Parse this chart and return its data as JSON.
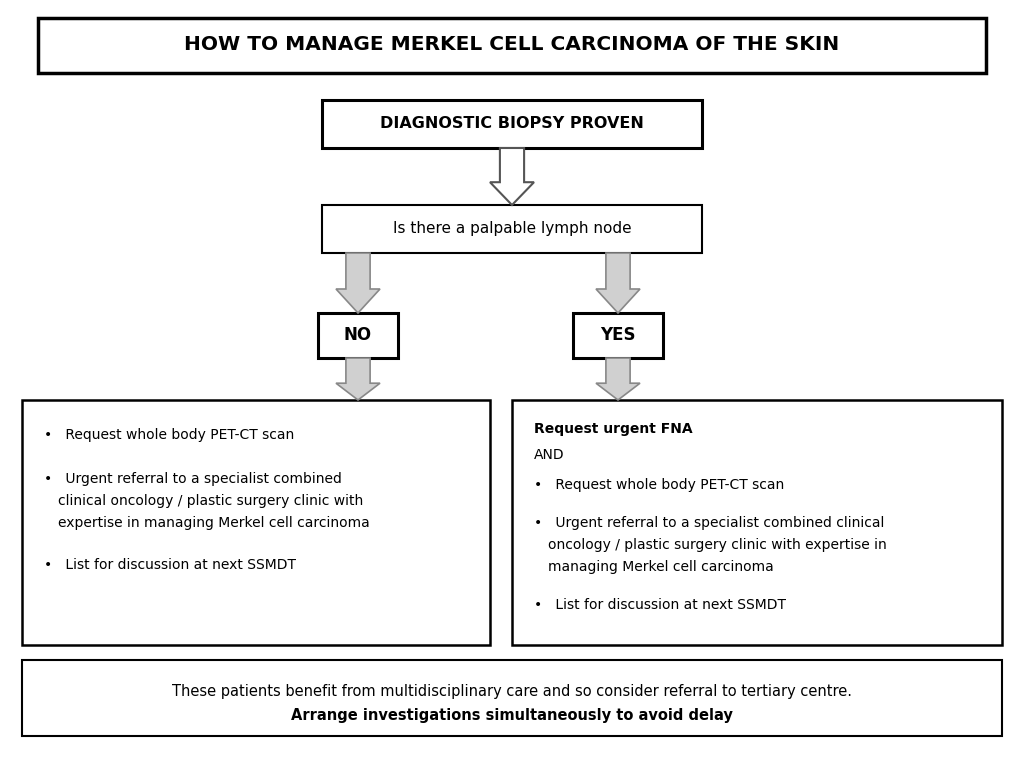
{
  "title": "HOW TO MANAGE MERKEL CELL CARCINOMA OF THE SKIN",
  "box1_text": "DIAGNOSTIC BIOPSY PROVEN",
  "box2_text": "Is there a palpable lymph node",
  "no_label": "NO",
  "yes_label": "YES",
  "left_bullet1": "•   Request whole body PET-CT scan",
  "left_bullet2a": "•   Urgent referral to a specialist combined",
  "left_bullet2b": "    clinical oncology / plastic surgery clinic with",
  "left_bullet2c": "    expertise in managing Merkel cell carcinoma",
  "left_bullet3": "•   List for discussion at next SSMDT",
  "right_bold": "Request urgent FNA",
  "right_and": "AND",
  "right_bullet1": "•   Request whole body PET-CT scan",
  "right_bullet2a": "•   Urgent referral to a specialist combined clinical",
  "right_bullet2b": "    oncology / plastic surgery clinic with expertise in",
  "right_bullet2c": "    managing Merkel cell carcinoma",
  "right_bullet3": "•   List for discussion at next SSMDT",
  "footer1": "These patients benefit from multidisciplinary care and so consider referral to tertiary centre.",
  "footer2": "Arrange investigations simultaneously to avoid delay",
  "bg": "#ffffff",
  "ec": "#000000",
  "arrow_fc": "#d0d0d0",
  "arrow_ec": "#888888"
}
